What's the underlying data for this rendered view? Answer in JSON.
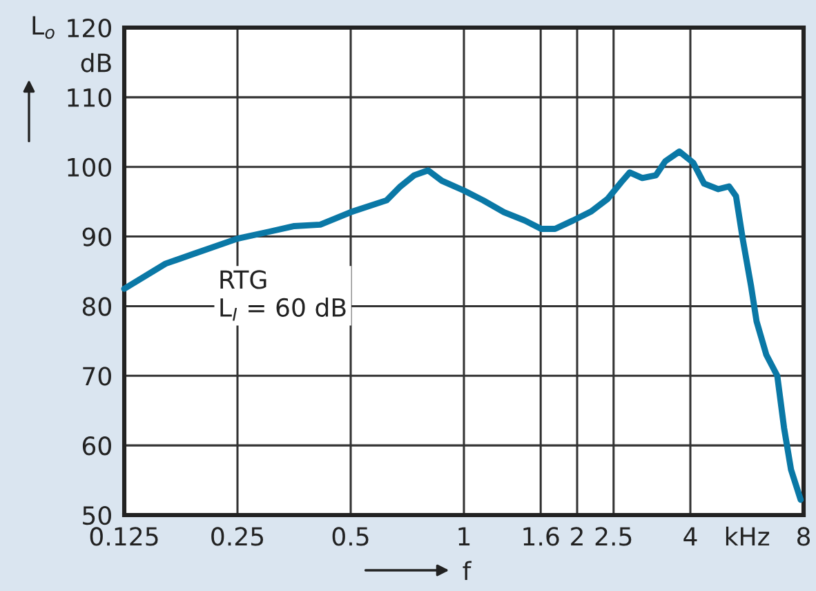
{
  "chart_data": {
    "type": "line",
    "xlabel": "f",
    "ylabel": "L$_{o}$",
    "log": "x",
    "x": [
      0.125,
      0.161,
      0.191,
      0.25,
      0.304,
      0.354,
      0.415,
      0.5,
      0.623,
      0.678,
      0.738,
      0.803,
      0.874,
      1,
      1.125,
      1.278,
      1.451,
      1.605,
      1.747,
      1.95,
      2.18,
      2.41,
      2.62,
      2.76,
      2.98,
      3.24,
      3.43,
      3.74,
      4.07,
      4.35,
      4.74,
      5.07,
      5.29,
      5.51,
      5.8,
      6.0,
      6.37,
      6.81,
      7.1,
      7.41,
      7.86
    ],
    "series": [
      {
        "color": "#0a78a6",
        "values": [
          82.5,
          86.1,
          87.5,
          89.7,
          90.7,
          91.5,
          91.7,
          93.5,
          95.2,
          97.2,
          98.8,
          99.5,
          98.0,
          96.6,
          95.2,
          93.5,
          92.3,
          91.1,
          91.1,
          92.3,
          93.6,
          95.4,
          97.8,
          99.2,
          98.4,
          98.8,
          100.8,
          102.2,
          100.6,
          97.6,
          96.8,
          97.2,
          95.8,
          89.7,
          82.9,
          77.8,
          73.0,
          70.0,
          62.5,
          56.5,
          52.2
        ]
      }
    ],
    "xlim": [
      0.125,
      8
    ],
    "xticks": [
      0.125,
      0.25,
      0.5,
      1,
      1.6,
      2,
      2.5,
      4,
      {
        "value": 5.66,
        "label": "kHz"
      },
      8
    ],
    "ylim": [
      50,
      120
    ],
    "yticks": [
      50,
      60,
      70,
      80,
      90,
      100,
      110,
      {
        "value": 115,
        "label": "dB"
      },
      120
    ],
    "grid": true,
    "line_style": "solid",
    "marker": "none",
    "annotations": [
      "RTG\nL$_{I}$ = 60 dB"
    ]
  }
}
